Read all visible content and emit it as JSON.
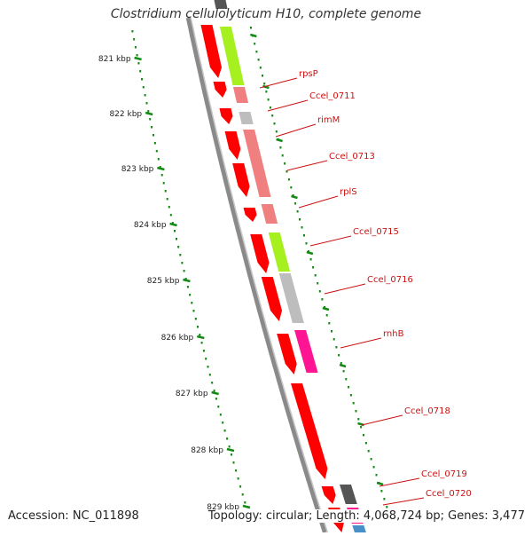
{
  "title": "Clostridium cellulolyticum H10, complete genome",
  "footer": {
    "accession_label": "Accession: NC_011898",
    "topology_label": "Topology: circular; Length: 4,068,724 bp; Genes: 3,477"
  },
  "colors": {
    "backbone": "#8a8a8a",
    "forward_strand": "#ff0000",
    "reverse_cds_light": "#f08080",
    "reverse_cds_green": "#a6f020",
    "reverse_cds_gray": "#bdbdbd",
    "reverse_cds_dark": "#555555",
    "reverse_cds_magenta": "#ff1493",
    "reverse_cds_blue": "#4a90c8",
    "tick_mark": "#138a13",
    "label_text": "#cc1111"
  },
  "scale_ticks": [
    {
      "label": "821 kbp"
    },
    {
      "label": "822 kbp"
    },
    {
      "label": "823 kbp"
    },
    {
      "label": "824 kbp"
    },
    {
      "label": "825 kbp"
    },
    {
      "label": "826 kbp"
    },
    {
      "label": "827 kbp"
    },
    {
      "label": "828 kbp"
    },
    {
      "label": "829 kbp"
    }
  ],
  "gene_labels": [
    {
      "name": "rpsP"
    },
    {
      "name": "Ccel_0711"
    },
    {
      "name": "rimM"
    },
    {
      "name": "Ccel_0713"
    },
    {
      "name": "rplS"
    },
    {
      "name": "Ccel_0715"
    },
    {
      "name": "Ccel_0716"
    },
    {
      "name": "rnhB"
    },
    {
      "name": "Ccel_0718"
    },
    {
      "name": "Ccel_0719"
    },
    {
      "name": "Ccel_0720"
    }
  ]
}
